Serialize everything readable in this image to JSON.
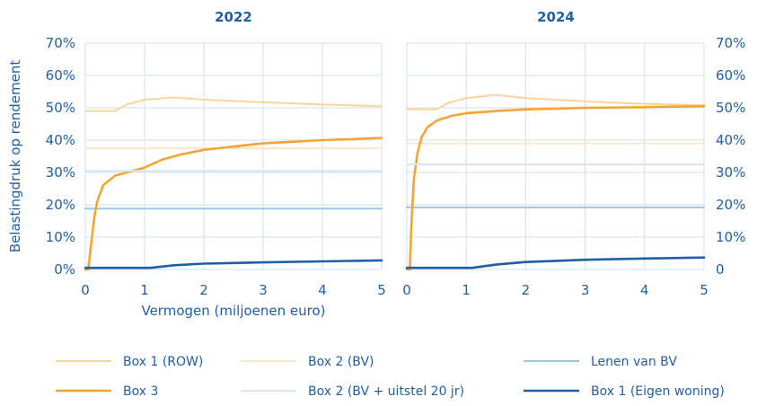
{
  "chart_data": [
    {
      "type": "line",
      "title": "2022",
      "xlabel": "Vermogen (miljoenen euro)",
      "ylabel": "Belastingdruk op rendement",
      "xlim": [
        0,
        5
      ],
      "ylim": [
        0,
        70
      ],
      "xticks": [
        "0",
        "1",
        "2",
        "3",
        "4",
        "5"
      ],
      "yticks": [
        "0%",
        "10%",
        "20%",
        "30%",
        "40%",
        "50%",
        "60%",
        "70%"
      ],
      "grid": true,
      "series": [
        {
          "name": "Box 1 (ROW)",
          "x": [
            0,
            0.5,
            0.7,
            1.0,
            1.5,
            2.0,
            3.0,
            4.0,
            5.0
          ],
          "y": [
            49,
            49,
            51,
            52.5,
            53.2,
            52.5,
            51.7,
            51.0,
            50.5
          ]
        },
        {
          "name": "Box 2 (BV)",
          "x": [
            0,
            5
          ],
          "y": [
            37.5,
            37.5
          ]
        },
        {
          "name": "Lenen van BV",
          "x": [
            0,
            5
          ],
          "y": [
            18.8,
            18.8
          ]
        },
        {
          "name": "Box 3",
          "x": [
            0,
            0.05,
            0.1,
            0.15,
            0.2,
            0.3,
            0.5,
            0.8,
            1.0,
            1.3,
            1.6,
            2.0,
            2.5,
            3.0,
            3.5,
            4.0,
            4.5,
            5.0
          ],
          "y": [
            0,
            0,
            8,
            16,
            21,
            26,
            29,
            30.5,
            31.5,
            34,
            35.5,
            37,
            38,
            39,
            39.5,
            40,
            40.3,
            40.7
          ]
        },
        {
          "name": "Box 2 (BV + uitstel 20 jr)",
          "x": [
            0,
            5
          ],
          "y": [
            30.5,
            30.5
          ]
        },
        {
          "name": "Box 1 (Eigen woning)",
          "x": [
            0,
            1.1,
            1.5,
            2.0,
            3.0,
            4.0,
            5.0
          ],
          "y": [
            0.5,
            0.5,
            1.3,
            1.8,
            2.2,
            2.5,
            2.8
          ]
        }
      ]
    },
    {
      "type": "line",
      "title": "2024",
      "xlim": [
        0,
        5
      ],
      "ylim": [
        0,
        70
      ],
      "xticks": [
        "0",
        "1",
        "2",
        "3",
        "4",
        "5"
      ],
      "yticks": [
        "0",
        "10%",
        "20%",
        "30%",
        "40%",
        "50%",
        "60%",
        "70%"
      ],
      "grid": true,
      "series": [
        {
          "name": "Box 1 (ROW)",
          "x": [
            0,
            0.5,
            0.7,
            1.0,
            1.5,
            2.0,
            3.0,
            4.0,
            5.0
          ],
          "y": [
            49.5,
            49.5,
            51.5,
            53,
            54,
            53,
            52,
            51.2,
            50.8
          ]
        },
        {
          "name": "Box 2 (BV)",
          "x": [
            0,
            5
          ],
          "y": [
            39,
            39
          ]
        },
        {
          "name": "Lenen van BV",
          "x": [
            0,
            5
          ],
          "y": [
            19.2,
            19.2
          ]
        },
        {
          "name": "Box 3",
          "x": [
            0,
            0.05,
            0.08,
            0.12,
            0.18,
            0.25,
            0.35,
            0.5,
            0.75,
            1.0,
            1.5,
            2.0,
            3.0,
            4.0,
            5.0
          ],
          "y": [
            0,
            0,
            15,
            28,
            36,
            41,
            44,
            46,
            47.5,
            48.3,
            49,
            49.5,
            50,
            50.2,
            50.5
          ]
        },
        {
          "name": "Box 2 (BV + uitstel 20 jr)",
          "x": [
            0,
            5
          ],
          "y": [
            32.5,
            32.5
          ]
        },
        {
          "name": "Box 1 (Eigen woning)",
          "x": [
            0,
            1.1,
            1.5,
            2.0,
            3.0,
            4.0,
            5.0
          ],
          "y": [
            0.5,
            0.5,
            1.5,
            2.3,
            3.0,
            3.4,
            3.7
          ]
        }
      ]
    }
  ],
  "legend": {
    "placement": "bottom",
    "items": [
      {
        "label": "Box 1 (ROW)",
        "color": "#f8d49a"
      },
      {
        "label": "Box 2 (BV)",
        "color": "#fce7c4"
      },
      {
        "label": "Lenen van BV",
        "color": "#9cc5e6"
      },
      {
        "label": "Box 3",
        "color": "#f3a531"
      },
      {
        "label": "Box 2 (BV + uitstel 20 jr)",
        "color": "#d5e7f5"
      },
      {
        "label": "Box 1 (Eigen woning)",
        "color": "#1f5fa5"
      }
    ]
  },
  "colors": {
    "text": "#1f5fa5",
    "grid": "#cfe0f1",
    "panel_bg": "#ffffff"
  }
}
